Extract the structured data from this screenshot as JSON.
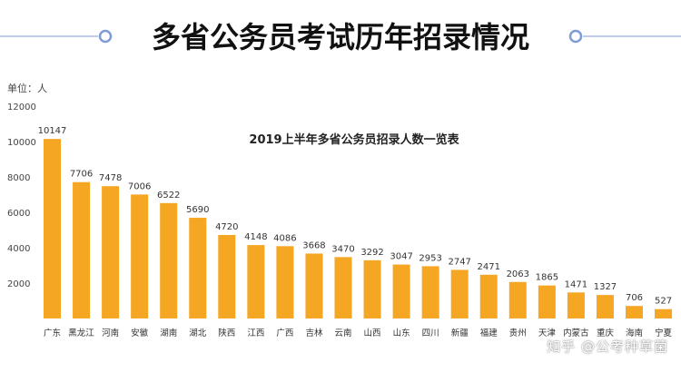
{
  "header": {
    "title": "多省公务员考试历年招录情况"
  },
  "watermark": "知乎 @公考种草菌",
  "colors": {
    "bar": "#F5A623",
    "bar_edge": "#E79A12",
    "title_rule": "#7F9BD8",
    "text": "#333333",
    "axis_text": "#444444"
  },
  "chart_data": {
    "type": "bar",
    "title": "2019上半年多省公务员招录人数一览表",
    "unit_label": "单位：人",
    "categories": [
      "广东",
      "黑龙江",
      "河南",
      "安徽",
      "湖南",
      "湖北",
      "陕西",
      "江西",
      "广西",
      "吉林",
      "云南",
      "山西",
      "山东",
      "四川",
      "新疆",
      "福建",
      "贵州",
      "天津",
      "内蒙古",
      "重庆",
      "海南",
      "宁夏"
    ],
    "values": [
      10147,
      7706,
      7478,
      7006,
      6522,
      5690,
      4720,
      4148,
      4086,
      3668,
      3470,
      3292,
      3047,
      2953,
      2747,
      2471,
      2063,
      1865,
      1471,
      1327,
      706,
      527
    ],
    "yticks": [
      2000,
      4000,
      6000,
      8000,
      10000,
      12000
    ],
    "ylim": [
      0,
      12000
    ],
    "grid": false,
    "legend": "none"
  }
}
